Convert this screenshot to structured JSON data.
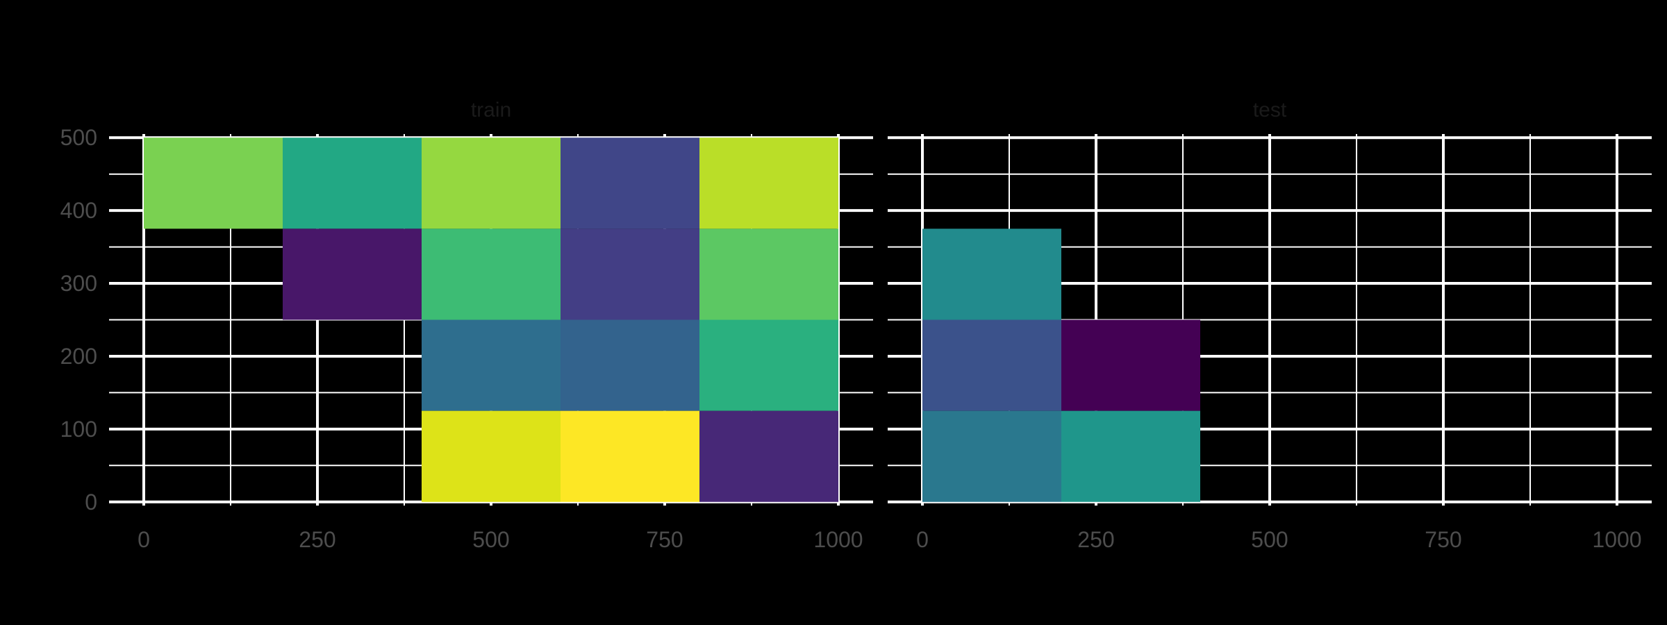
{
  "chart_data": {
    "type": "heatmap",
    "x_ticks": [
      0,
      250,
      500,
      750,
      1000
    ],
    "y_ticks": [
      0,
      100,
      200,
      300,
      400,
      500
    ],
    "xlim": [
      -50,
      1050
    ],
    "ylim": [
      -5,
      505
    ],
    "grid": true,
    "gridline_color": "#ffffff",
    "background_color": "#000000",
    "panels": [
      {
        "title": "train",
        "tiles": [
          {
            "x0": 0,
            "x1": 200,
            "y0": 375,
            "y1": 500,
            "color": "#7AD151"
          },
          {
            "x0": 200,
            "x1": 400,
            "y0": 375,
            "y1": 500,
            "color": "#22A884"
          },
          {
            "x0": 400,
            "x1": 600,
            "y0": 375,
            "y1": 500,
            "color": "#95D840"
          },
          {
            "x0": 600,
            "x1": 800,
            "y0": 375,
            "y1": 500,
            "color": "#404688"
          },
          {
            "x0": 800,
            "x1": 1000,
            "y0": 375,
            "y1": 500,
            "color": "#BADE28"
          },
          {
            "x0": 200,
            "x1": 400,
            "y0": 250,
            "y1": 375,
            "color": "#481769"
          },
          {
            "x0": 400,
            "x1": 600,
            "y0": 250,
            "y1": 375,
            "color": "#3DBC74"
          },
          {
            "x0": 600,
            "x1": 800,
            "y0": 250,
            "y1": 375,
            "color": "#433E85"
          },
          {
            "x0": 800,
            "x1": 1000,
            "y0": 250,
            "y1": 375,
            "color": "#5CC863"
          },
          {
            "x0": 400,
            "x1": 600,
            "y0": 125,
            "y1": 250,
            "color": "#2E6E8E"
          },
          {
            "x0": 600,
            "x1": 800,
            "y0": 125,
            "y1": 250,
            "color": "#33638D"
          },
          {
            "x0": 800,
            "x1": 1000,
            "y0": 125,
            "y1": 250,
            "color": "#2AB07F"
          },
          {
            "x0": 400,
            "x1": 600,
            "y0": 0,
            "y1": 125,
            "color": "#DDE318"
          },
          {
            "x0": 600,
            "x1": 800,
            "y0": 0,
            "y1": 125,
            "color": "#FDE725"
          },
          {
            "x0": 800,
            "x1": 1000,
            "y0": 0,
            "y1": 125,
            "color": "#472877"
          }
        ]
      },
      {
        "title": "test",
        "tiles": [
          {
            "x0": 0,
            "x1": 200,
            "y0": 250,
            "y1": 375,
            "color": "#228B8D"
          },
          {
            "x0": 0,
            "x1": 200,
            "y0": 125,
            "y1": 250,
            "color": "#3B528B"
          },
          {
            "x0": 200,
            "x1": 400,
            "y0": 125,
            "y1": 250,
            "color": "#440154"
          },
          {
            "x0": 0,
            "x1": 200,
            "y0": 0,
            "y1": 125,
            "color": "#2A788E"
          },
          {
            "x0": 200,
            "x1": 400,
            "y0": 0,
            "y1": 125,
            "color": "#1F968B"
          }
        ]
      }
    ]
  }
}
